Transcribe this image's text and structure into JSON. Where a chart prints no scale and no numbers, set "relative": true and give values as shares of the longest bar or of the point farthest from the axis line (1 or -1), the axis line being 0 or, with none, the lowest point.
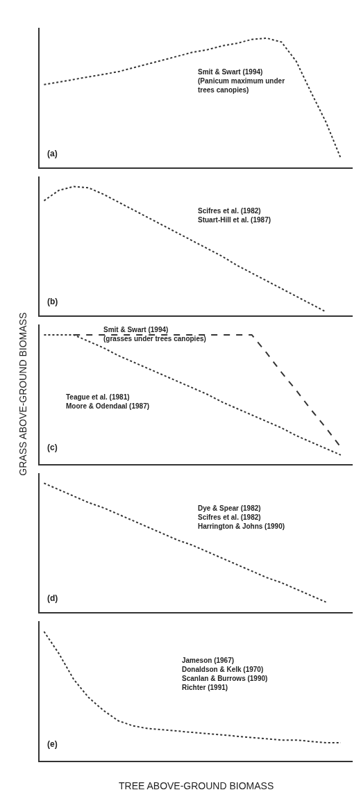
{
  "chart_data": [
    {
      "type": "line",
      "relative": true,
      "categories": [
        null,
        null,
        null,
        null,
        null,
        null,
        null,
        null,
        null,
        null,
        null,
        null,
        null,
        null,
        null,
        null,
        null,
        null,
        null,
        null,
        null
      ],
      "series": [
        {
          "color": "#333333",
          "line_style": "dotted",
          "values": [
            0.64,
            0.66,
            0.68,
            0.7,
            0.72,
            0.74,
            0.77,
            0.8,
            0.83,
            0.86,
            0.89,
            0.91,
            0.94,
            0.96,
            0.99,
            1.0,
            0.97,
            0.82,
            0.58,
            0.35,
            0.07
          ]
        }
      ],
      "annotations": [
        "(a)",
        "Smit & Swart (1994)\n(Panicum maximum under\ntrees canopies)"
      ]
    },
    {
      "type": "line",
      "relative": true,
      "categories": [
        null,
        null,
        null,
        null,
        null,
        null,
        null,
        null,
        null,
        null,
        null,
        null,
        null,
        null,
        null,
        null,
        null,
        null,
        null,
        null,
        null
      ],
      "series": [
        {
          "color": "#333333",
          "line_style": "dotted",
          "values": [
            0.89,
            0.97,
            1.0,
            0.99,
            0.94,
            0.88,
            0.82,
            0.76,
            0.7,
            0.64,
            0.58,
            0.52,
            0.46,
            0.39,
            0.33,
            0.27,
            0.21,
            0.15,
            0.09,
            0.03,
            null
          ]
        }
      ],
      "annotations": [
        "(b)",
        "Scifres et al. (1982)\nStuart-Hill et al. (1987)"
      ]
    },
    {
      "type": "line",
      "relative": true,
      "ylabel": "GRASS ABOVE-GROUND BIOMASS",
      "categories": [
        null,
        null,
        null,
        null,
        null,
        null,
        null,
        null,
        null,
        null,
        null,
        null,
        null,
        null,
        null,
        null,
        null,
        null,
        null,
        null,
        null
      ],
      "series": [
        {
          "color": "#333333",
          "line_style": "dotted",
          "values": [
            1.0,
            1.0,
            1.0,
            0.95,
            0.9,
            0.84,
            0.79,
            0.74,
            0.69,
            0.64,
            0.59,
            0.54,
            0.48,
            0.43,
            0.38,
            0.33,
            0.28,
            0.22,
            0.17,
            0.12,
            0.07
          ]
        },
        {
          "color": "#333333",
          "line_style": "dashed",
          "values": [
            null,
            null,
            1.0,
            1.0,
            1.0,
            1.0,
            1.0,
            1.0,
            1.0,
            1.0,
            1.0,
            1.0,
            1.0,
            1.0,
            1.0,
            0.86,
            0.71,
            0.57,
            0.42,
            0.28,
            0.13
          ]
        }
      ],
      "annotations": [
        "(c)",
        "Smit & Swart (1994)\n(grasses under trees canopies)",
        "Teague et al. (1981)\nMoore & Odendaal (1987)"
      ]
    },
    {
      "type": "line",
      "relative": true,
      "categories": [
        null,
        null,
        null,
        null,
        null,
        null,
        null,
        null,
        null,
        null,
        null,
        null,
        null,
        null,
        null,
        null,
        null,
        null,
        null,
        null,
        null
      ],
      "series": [
        {
          "color": "#333333",
          "line_style": "dotted",
          "values": [
            1.0,
            0.95,
            0.9,
            0.85,
            0.81,
            0.76,
            0.71,
            0.66,
            0.61,
            0.56,
            0.52,
            0.47,
            0.42,
            0.37,
            0.32,
            0.27,
            0.23,
            0.18,
            0.13,
            0.08,
            null
          ]
        }
      ],
      "annotations": [
        "(d)",
        "Dye & Spear (1982)\nScifres et al. (1982)\nHarrington & Johns (1990)"
      ]
    },
    {
      "type": "line",
      "relative": true,
      "xlabel": "TREE ABOVE-GROUND BIOMASS",
      "categories": [
        null,
        null,
        null,
        null,
        null,
        null,
        null,
        null,
        null,
        null,
        null,
        null,
        null,
        null,
        null,
        null,
        null,
        null,
        null,
        null,
        null
      ],
      "series": [
        {
          "color": "#333333",
          "line_style": "dotted",
          "values": [
            1.0,
            0.83,
            0.63,
            0.49,
            0.39,
            0.31,
            0.27,
            0.25,
            0.24,
            0.23,
            0.22,
            0.21,
            0.2,
            0.19,
            0.18,
            0.17,
            0.16,
            0.16,
            0.15,
            0.14,
            0.14
          ]
        }
      ],
      "annotations": [
        "(e)",
        "Jameson (1967)\nDonaldson & Kelk (1970)\nScanlan & Burrows (1990)\nRichter (1991)"
      ]
    }
  ]
}
